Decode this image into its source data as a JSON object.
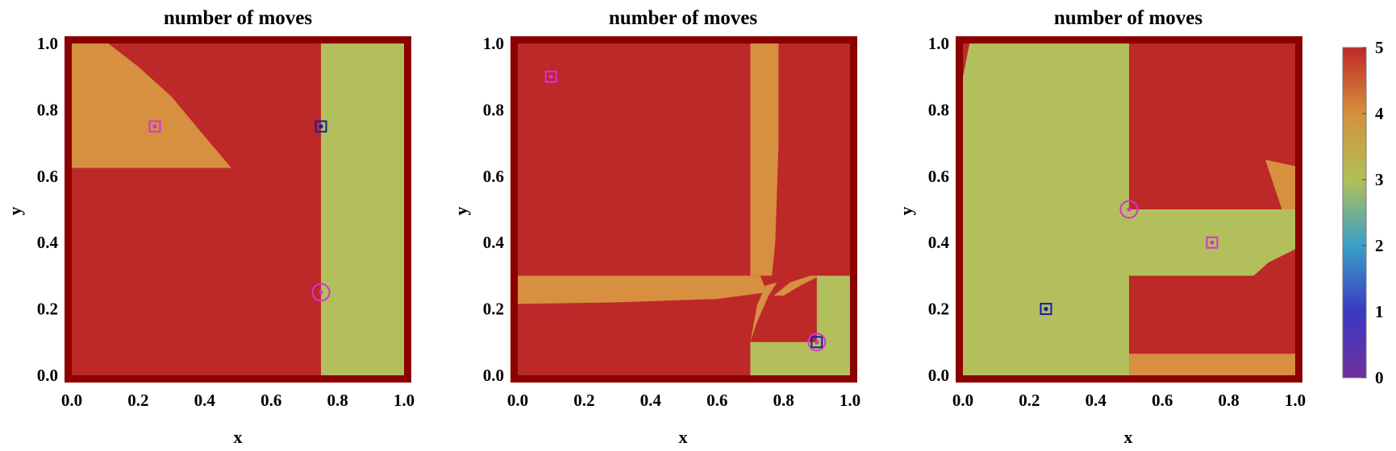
{
  "chart_data": [
    {
      "type": "heatmap",
      "title": "number of moves",
      "xlabel": "x",
      "ylabel": "y",
      "xlim": [
        0,
        1
      ],
      "ylim": [
        0,
        1
      ],
      "x_ticks": [
        "0.0",
        "0.2",
        "0.4",
        "0.6",
        "0.8",
        "1.0"
      ],
      "y_ticks": [
        "0.0",
        "0.2",
        "0.4",
        "0.6",
        "0.8",
        "1.0"
      ],
      "background_value": 5,
      "regions": [
        {
          "value": 3,
          "polygon": [
            [
              0.75,
              0
            ],
            [
              1,
              0
            ],
            [
              1,
              1
            ],
            [
              0.75,
              1
            ]
          ]
        },
        {
          "value": 4,
          "polygon": [
            [
              0,
              0.625
            ],
            [
              0.48,
              0.625
            ],
            [
              0.4,
              0.72
            ],
            [
              0.3,
              0.84
            ],
            [
              0.2,
              0.93
            ],
            [
              0.11,
              1
            ],
            [
              0,
              1
            ]
          ]
        }
      ],
      "markers": [
        {
          "shape": "square",
          "color": "#d633d6",
          "x": 0.25,
          "y": 0.75
        },
        {
          "shape": "square",
          "color": "#1a1aa8",
          "x": 0.75,
          "y": 0.75
        },
        {
          "shape": "circle",
          "color": "#d633d6",
          "x": 0.75,
          "y": 0.25
        }
      ]
    },
    {
      "type": "heatmap",
      "title": "number of moves",
      "xlabel": "x",
      "ylabel": "y",
      "xlim": [
        0,
        1
      ],
      "ylim": [
        0,
        1
      ],
      "x_ticks": [
        "0.0",
        "0.2",
        "0.4",
        "0.6",
        "0.8",
        "1.0"
      ],
      "y_ticks": [
        "0.0",
        "0.2",
        "0.4",
        "0.6",
        "0.8",
        "1.0"
      ],
      "background_value": 5,
      "regions": [
        {
          "value": 4,
          "polygon": [
            [
              0,
              0.215
            ],
            [
              0.3,
              0.22
            ],
            [
              0.6,
              0.23
            ],
            [
              0.75,
              0.25
            ],
            [
              0.73,
              0.3
            ],
            [
              0,
              0.3
            ]
          ]
        },
        {
          "value": 4,
          "polygon": [
            [
              0.7,
              0.3
            ],
            [
              0.7,
              1
            ],
            [
              0.785,
              1
            ],
            [
              0.785,
              0.7
            ],
            [
              0.775,
              0.4
            ],
            [
              0.765,
              0.3
            ]
          ]
        },
        {
          "value": 4,
          "polygon": [
            [
              0.7,
              0.1
            ],
            [
              0.72,
              0.16
            ],
            [
              0.755,
              0.24
            ],
            [
              0.78,
              0.28
            ],
            [
              0.745,
              0.27
            ],
            [
              0.72,
              0.21
            ]
          ]
        },
        {
          "value": 4,
          "polygon": [
            [
              0.77,
              0.24
            ],
            [
              0.82,
              0.28
            ],
            [
              0.88,
              0.3
            ],
            [
              0.91,
              0.3
            ],
            [
              0.85,
              0.27
            ],
            [
              0.8,
              0.24
            ]
          ]
        },
        {
          "value": 3,
          "polygon": [
            [
              0.7,
              0
            ],
            [
              1,
              0
            ],
            [
              1,
              0.3
            ],
            [
              0.9,
              0.3
            ],
            [
              0.9,
              0.1
            ],
            [
              0.7,
              0.1
            ]
          ]
        }
      ],
      "markers": [
        {
          "shape": "square",
          "color": "#d633d6",
          "x": 0.1,
          "y": 0.9
        },
        {
          "shape": "square",
          "color": "#1a1aa8",
          "x": 0.9,
          "y": 0.1
        },
        {
          "shape": "circle",
          "color": "#d633d6",
          "x": 0.9,
          "y": 0.1
        }
      ]
    },
    {
      "type": "heatmap",
      "title": "number of moves",
      "xlabel": "x",
      "ylabel": "y",
      "xlim": [
        0,
        1
      ],
      "ylim": [
        0,
        1
      ],
      "x_ticks": [
        "0.0",
        "0.2",
        "0.4",
        "0.6",
        "0.8",
        "1.0"
      ],
      "y_ticks": [
        "0.0",
        "0.2",
        "0.4",
        "0.6",
        "0.8",
        "1.0"
      ],
      "background_value": 5,
      "regions": [
        {
          "value": 3,
          "polygon": [
            [
              0,
              0
            ],
            [
              0.5,
              0
            ],
            [
              0.5,
              0.3
            ],
            [
              0.875,
              0.3
            ],
            [
              0.92,
              0.34
            ],
            [
              1,
              0.38
            ],
            [
              1,
              0.5
            ],
            [
              0.5,
              0.5
            ],
            [
              0.5,
              1
            ],
            [
              0.02,
              1
            ],
            [
              0,
              0.9
            ]
          ]
        },
        {
          "value": 4,
          "polygon": [
            [
              0.5,
              0
            ],
            [
              1,
              0
            ],
            [
              1,
              0.065
            ],
            [
              0.5,
              0.065
            ]
          ]
        },
        {
          "value": 4,
          "polygon": [
            [
              0.91,
              0.65
            ],
            [
              1,
              0.63
            ],
            [
              1,
              0.5
            ],
            [
              0.96,
              0.5
            ]
          ]
        }
      ],
      "markers": [
        {
          "shape": "square",
          "color": "#1a1aa8",
          "x": 0.25,
          "y": 0.2
        },
        {
          "shape": "square",
          "color": "#d633d6",
          "x": 0.75,
          "y": 0.4
        },
        {
          "shape": "circle",
          "color": "#d633d6",
          "x": 0.5,
          "y": 0.5
        }
      ]
    }
  ],
  "colorbar": {
    "range": [
      0,
      5
    ],
    "tick_labels": [
      "0",
      "1",
      "2",
      "3",
      "4",
      "5"
    ],
    "stops": [
      "#7030a0",
      "#3a3ac0",
      "#3aa0c8",
      "#b0c058",
      "#d4913c",
      "#c02828"
    ]
  },
  "colors": {
    "frame": "#8b0000",
    "value_5": "#bd2828",
    "value_4": "#d78f40",
    "value_3": "#b2bf5c"
  }
}
